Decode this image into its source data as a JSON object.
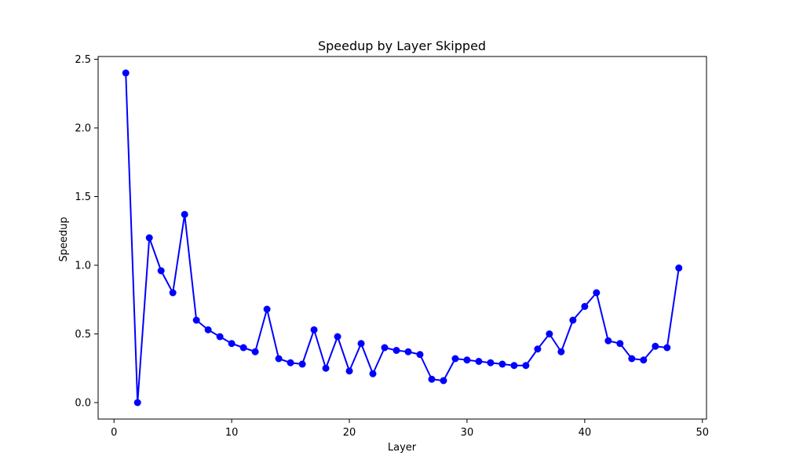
{
  "chart_data": {
    "type": "line",
    "title": "Speedup by Layer Skipped",
    "xlabel": "Layer",
    "ylabel": "Speedup",
    "xlim": [
      -1.35,
      50.35
    ],
    "ylim": [
      -0.12,
      2.52
    ],
    "xticks": [
      0,
      10,
      20,
      30,
      40,
      50
    ],
    "yticks": [
      0.0,
      0.5,
      1.0,
      1.5,
      2.0,
      2.5
    ],
    "xtick_labels": [
      "0",
      "10",
      "20",
      "30",
      "40",
      "50"
    ],
    "ytick_labels": [
      "0.0",
      "0.5",
      "1.0",
      "1.5",
      "2.0",
      "2.5"
    ],
    "grid": false,
    "series": [
      {
        "color": "#0000ff",
        "marker": "circle",
        "x": [
          1,
          2,
          3,
          4,
          5,
          6,
          7,
          8,
          9,
          10,
          11,
          12,
          13,
          14,
          15,
          16,
          17,
          18,
          19,
          20,
          21,
          22,
          23,
          24,
          25,
          26,
          27,
          28,
          29,
          30,
          31,
          32,
          33,
          34,
          35,
          36,
          37,
          38,
          39,
          40,
          41,
          42,
          43,
          44,
          45,
          46,
          47,
          48
        ],
        "values": [
          2.4,
          0.0,
          1.2,
          0.96,
          0.8,
          1.37,
          0.6,
          0.53,
          0.48,
          0.43,
          0.4,
          0.37,
          0.68,
          0.32,
          0.29,
          0.28,
          0.53,
          0.25,
          0.48,
          0.23,
          0.43,
          0.21,
          0.4,
          0.38,
          0.37,
          0.35,
          0.17,
          0.16,
          0.32,
          0.31,
          0.3,
          0.29,
          0.28,
          0.27,
          0.27,
          0.39,
          0.5,
          0.37,
          0.6,
          0.7,
          0.8,
          0.45,
          0.43,
          0.32,
          0.31,
          0.41,
          0.4,
          0.98
        ]
      }
    ]
  }
}
